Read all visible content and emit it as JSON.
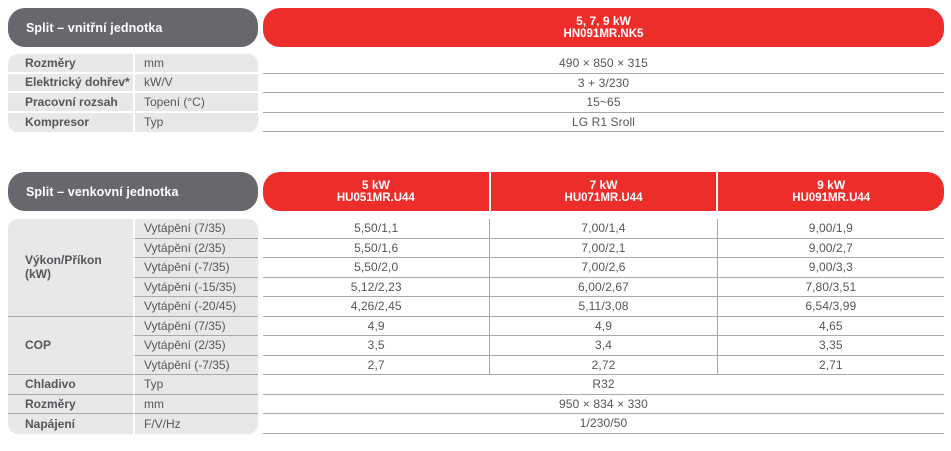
{
  "palette": {
    "brand_red": "#ec2d2a",
    "header_gray": "#67686d",
    "cell_gray": "#e8e8e9",
    "line_gray": "#a8a9ab",
    "text": "#54565a"
  },
  "indoor": {
    "title": "Split – vnitřní jednotka",
    "header": {
      "line1": "5, 7, 9 kW",
      "line2": "HN091MR.NK5"
    },
    "rows": [
      {
        "label": "Rozměry",
        "unit": "mm",
        "value": "490 × 850 × 315"
      },
      {
        "label": "Elektrický dohřev*",
        "unit": "kW/V",
        "value": "3 + 3/230"
      },
      {
        "label": "Pracovní rozsah",
        "unit": "Topení (°C)",
        "value": "15~65"
      },
      {
        "label": "Kompresor",
        "unit": "Typ",
        "value": "LG R1 Sroll"
      }
    ]
  },
  "outdoor": {
    "title": "Split – venkovní jednotka",
    "headers": [
      {
        "line1": "5 kW",
        "line2": "HU051MR.U44"
      },
      {
        "line1": "7 kW",
        "line2": "HU071MR.U44"
      },
      {
        "line1": "9 kW",
        "line2": "HU091MR.U44"
      }
    ],
    "groups": [
      {
        "label": "Výkon/Příkon (kW)",
        "rows": [
          {
            "sub": "Vytápění (7/35)",
            "values": [
              "5,50/1,1",
              "7,00/1,4",
              "9,00/1,9"
            ]
          },
          {
            "sub": "Vytápění (2/35)",
            "values": [
              "5,50/1,6",
              "7,00/2,1",
              "9,00/2,7"
            ]
          },
          {
            "sub": "Vytápění (-7/35)",
            "values": [
              "5,50/2,0",
              "7,00/2,6",
              "9,00/3,3"
            ]
          },
          {
            "sub": "Vytápění (-15/35)",
            "values": [
              "5,12/2,23",
              "6,00/2,67",
              "7,80/3,51"
            ]
          },
          {
            "sub": "Vytápění (-20/45)",
            "values": [
              "4,26/2,45",
              "5,11/3,08",
              "6,54/3,99"
            ]
          }
        ]
      },
      {
        "label": "COP",
        "rows": [
          {
            "sub": "Vytápění (7/35)",
            "values": [
              "4,9",
              "4,9",
              "4,65"
            ]
          },
          {
            "sub": "Vytápění (2/35)",
            "values": [
              "3,5",
              "3,4",
              "3,35"
            ]
          },
          {
            "sub": "Vytápění (-7/35)",
            "values": [
              "2,7",
              "2,72",
              "2,71"
            ]
          }
        ]
      }
    ],
    "info_rows": [
      {
        "label": "Chladivo",
        "unit": "Typ",
        "value": "R32"
      },
      {
        "label": "Rozměry",
        "unit": "mm",
        "value": "950 × 834 × 330"
      },
      {
        "label": "Napájení",
        "unit": "F/V/Hz",
        "value": "1/230/50"
      }
    ]
  }
}
